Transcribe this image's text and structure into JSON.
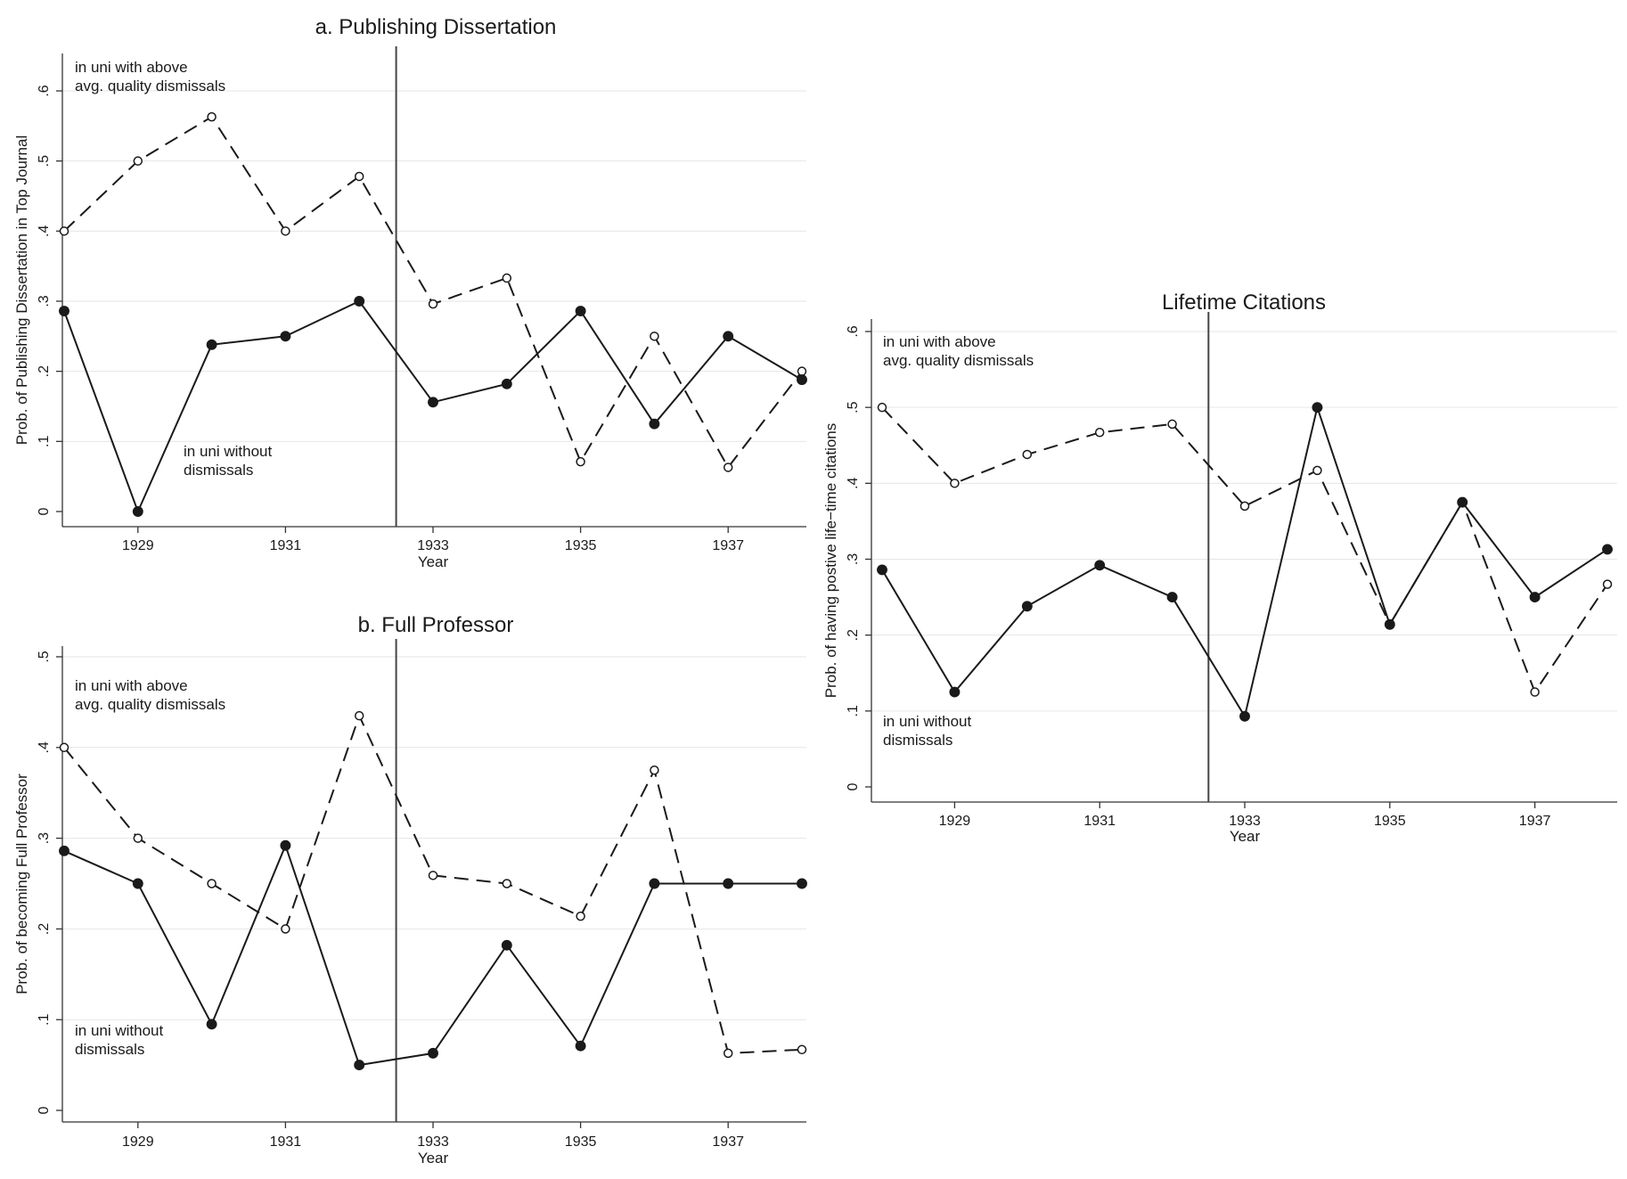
{
  "chart_data": [
    {
      "type": "line",
      "title": "a. Publishing Dissertation",
      "xlabel": "Year",
      "ylabel": "Prob. of Publishing Dissertation in Top Journal",
      "x": [
        1928,
        1929,
        1930,
        1931,
        1932,
        1933,
        1934,
        1935,
        1936,
        1937,
        1938
      ],
      "xlim": [
        1928,
        1938
      ],
      "ylim": [
        0,
        0.6
      ],
      "xtick_values": [
        1929,
        1931,
        1933,
        1935,
        1937
      ],
      "xtick_labels": [
        "1929",
        "1931",
        "1933",
        "1935",
        "1937"
      ],
      "ytick_values": [
        0,
        0.1,
        0.2,
        0.3,
        0.4,
        0.5,
        0.6
      ],
      "ytick_labels": [
        "0",
        ".1",
        ".2",
        ".3",
        ".4",
        ".5",
        ".6"
      ],
      "grid": true,
      "reference_line_x": 1932.5,
      "series": [
        {
          "style": "dashed",
          "marker": "hollow-circle",
          "values": [
            0.4,
            0.5,
            0.563,
            0.4,
            0.478,
            0.296,
            0.333,
            0.071,
            0.25,
            0.063,
            0.2
          ]
        },
        {
          "style": "solid",
          "marker": "filled-circle",
          "values": [
            0.286,
            0.0,
            0.238,
            0.25,
            0.3,
            0.156,
            0.182,
            0.286,
            0.125,
            0.25,
            0.188
          ]
        }
      ],
      "annotations": [
        {
          "lines": [
            "in uni with above",
            "avg. quality dismissals"
          ]
        },
        {
          "lines": [
            "in uni without",
            "dismissals"
          ]
        }
      ]
    },
    {
      "type": "line",
      "title": "b. Full Professor",
      "xlabel": "Year",
      "ylabel": "Prob. of becoming Full Professor",
      "x": [
        1928,
        1929,
        1930,
        1931,
        1932,
        1933,
        1934,
        1935,
        1936,
        1937,
        1938
      ],
      "xlim": [
        1928,
        1938
      ],
      "ylim": [
        0,
        0.5
      ],
      "xtick_values": [
        1929,
        1931,
        1933,
        1935,
        1937
      ],
      "xtick_labels": [
        "1929",
        "1931",
        "1933",
        "1935",
        "1937"
      ],
      "ytick_values": [
        0,
        0.1,
        0.2,
        0.3,
        0.4,
        0.5
      ],
      "ytick_labels": [
        "0",
        ".1",
        ".2",
        ".3",
        ".4",
        ".5"
      ],
      "grid": true,
      "reference_line_x": 1932.5,
      "series": [
        {
          "style": "dashed",
          "marker": "hollow-circle",
          "values": [
            0.4,
            0.3,
            0.25,
            0.2,
            0.435,
            0.259,
            0.25,
            0.214,
            0.375,
            0.063,
            0.067
          ]
        },
        {
          "style": "solid",
          "marker": "filled-circle",
          "values": [
            0.286,
            0.25,
            0.095,
            0.292,
            0.05,
            0.063,
            0.182,
            0.071,
            0.25,
            0.25,
            0.25
          ]
        }
      ],
      "annotations": [
        {
          "lines": [
            "in uni with above",
            "avg. quality dismissals"
          ]
        },
        {
          "lines": [
            "in uni without",
            "dismissals"
          ]
        }
      ]
    },
    {
      "type": "line",
      "title": "Lifetime Citations",
      "xlabel": "Year",
      "ylabel": "Prob. of having postive life−time citations",
      "x": [
        1928,
        1929,
        1930,
        1931,
        1932,
        1933,
        1934,
        1935,
        1936,
        1937,
        1938
      ],
      "xlim": [
        1928,
        1938
      ],
      "ylim": [
        0,
        0.6
      ],
      "xtick_values": [
        1929,
        1931,
        1933,
        1935,
        1937
      ],
      "xtick_labels": [
        "1929",
        "1931",
        "1933",
        "1935",
        "1937"
      ],
      "ytick_values": [
        0,
        0.1,
        0.2,
        0.3,
        0.4,
        0.5,
        0.6
      ],
      "ytick_labels": [
        "0",
        ".1",
        ".2",
        ".3",
        ".4",
        ".5",
        ".6"
      ],
      "grid": true,
      "reference_line_x": 1932.5,
      "series": [
        {
          "style": "dashed",
          "marker": "hollow-circle",
          "values": [
            0.5,
            0.4,
            0.438,
            0.467,
            0.478,
            0.37,
            0.417,
            0.214,
            0.375,
            0.125,
            0.267
          ]
        },
        {
          "style": "solid",
          "marker": "filled-circle",
          "values": [
            0.286,
            0.125,
            0.238,
            0.292,
            0.25,
            0.093,
            0.5,
            0.214,
            0.375,
            0.25,
            0.313
          ]
        }
      ],
      "annotations": [
        {
          "lines": [
            "in uni with above",
            "avg. quality dismissals"
          ]
        },
        {
          "lines": [
            "in uni without",
            "dismissals"
          ]
        }
      ]
    }
  ]
}
